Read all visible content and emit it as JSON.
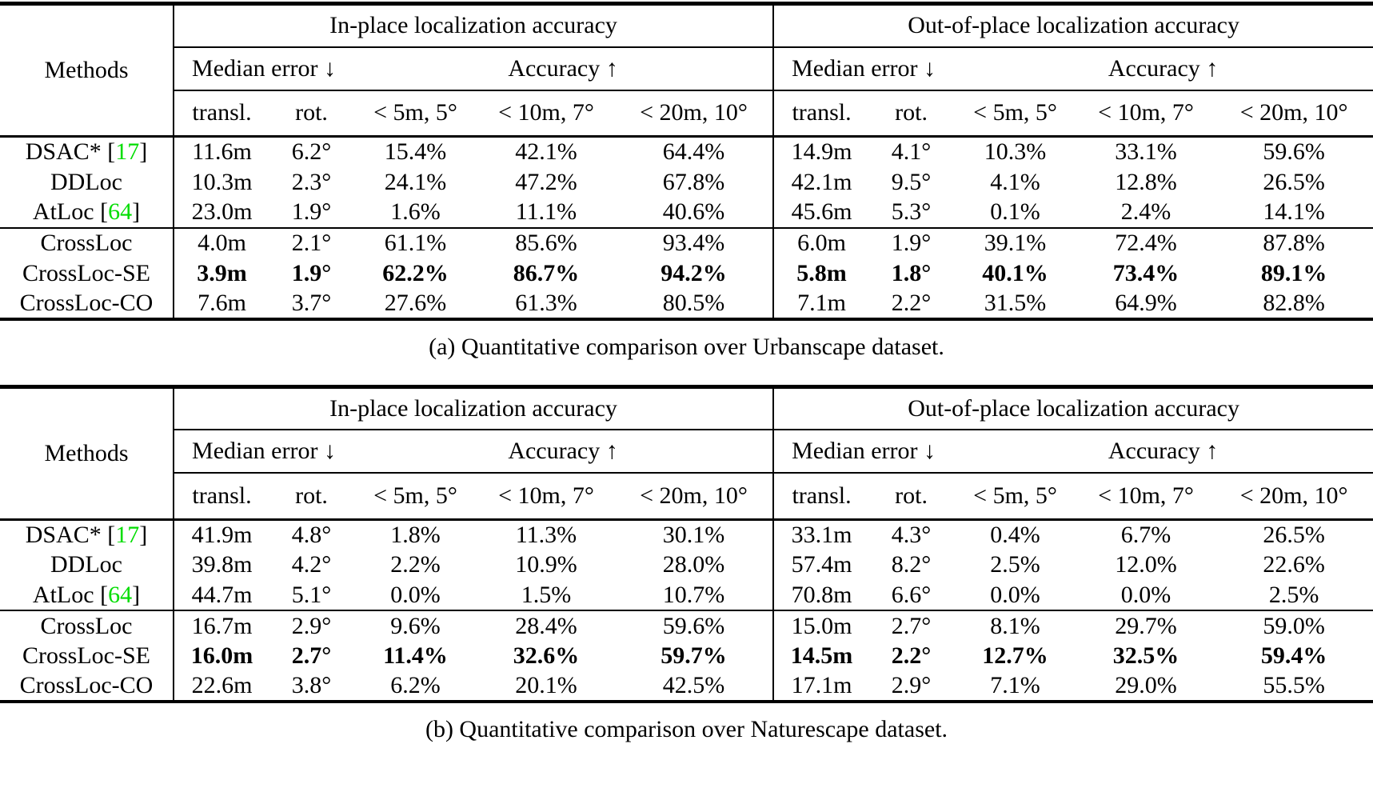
{
  "page": {
    "background": "#ffffff",
    "text_color": "#000000",
    "citation_color": "#00dd00",
    "rule_color": "#000000"
  },
  "header": {
    "methods": "Methods",
    "group_in": "In-place localization accuracy",
    "group_out": "Out-of-place localization accuracy",
    "median_error": "Median error ↓",
    "accuracy": "Accuracy ↑",
    "cols": [
      "transl.",
      "rot.",
      "< 5m, 5°",
      "< 10m, 7°",
      "< 20m, 10°"
    ]
  },
  "tables": [
    {
      "id": "urbanscape",
      "caption": "(a) Quantitative comparison over Urbanscape dataset.",
      "row_groups": [
        {
          "rows": [
            {
              "method": "DSAC*",
              "citation": "17",
              "bold": false,
              "in_place": [
                "11.6m",
                "6.2°",
                "15.4%",
                "42.1%",
                "64.4%"
              ],
              "out_of_place": [
                "14.9m",
                "4.1°",
                "10.3%",
                "33.1%",
                "59.6%"
              ]
            },
            {
              "method": "DDLoc",
              "citation": null,
              "bold": false,
              "in_place": [
                "10.3m",
                "2.3°",
                "24.1%",
                "47.2%",
                "67.8%"
              ],
              "out_of_place": [
                "42.1m",
                "9.5°",
                "4.1%",
                "12.8%",
                "26.5%"
              ]
            },
            {
              "method": "AtLoc",
              "citation": "64",
              "bold": false,
              "in_place": [
                "23.0m",
                "1.9°",
                "1.6%",
                "11.1%",
                "40.6%"
              ],
              "out_of_place": [
                "45.6m",
                "5.3°",
                "0.1%",
                "2.4%",
                "14.1%"
              ]
            }
          ]
        },
        {
          "rows": [
            {
              "method": "CrossLoc",
              "citation": null,
              "bold": false,
              "in_place": [
                "4.0m",
                "2.1°",
                "61.1%",
                "85.6%",
                "93.4%"
              ],
              "out_of_place": [
                "6.0m",
                "1.9°",
                "39.1%",
                "72.4%",
                "87.8%"
              ]
            },
            {
              "method": "CrossLoc-SE",
              "citation": null,
              "bold": true,
              "in_place": [
                "3.9m",
                "1.9°",
                "62.2%",
                "86.7%",
                "94.2%"
              ],
              "out_of_place": [
                "5.8m",
                "1.8°",
                "40.1%",
                "73.4%",
                "89.1%"
              ]
            },
            {
              "method": "CrossLoc-CO",
              "citation": null,
              "bold": false,
              "in_place": [
                "7.6m",
                "3.7°",
                "27.6%",
                "61.3%",
                "80.5%"
              ],
              "out_of_place": [
                "7.1m",
                "2.2°",
                "31.5%",
                "64.9%",
                "82.8%"
              ]
            }
          ]
        }
      ]
    },
    {
      "id": "naturescape",
      "caption": "(b) Quantitative comparison over Naturescape dataset.",
      "row_groups": [
        {
          "rows": [
            {
              "method": "DSAC*",
              "citation": "17",
              "bold": false,
              "in_place": [
                "41.9m",
                "4.8°",
                "1.8%",
                "11.3%",
                "30.1%"
              ],
              "out_of_place": [
                "33.1m",
                "4.3°",
                "0.4%",
                "6.7%",
                "26.5%"
              ]
            },
            {
              "method": "DDLoc",
              "citation": null,
              "bold": false,
              "in_place": [
                "39.8m",
                "4.2°",
                "2.2%",
                "10.9%",
                "28.0%"
              ],
              "out_of_place": [
                "57.4m",
                "8.2°",
                "2.5%",
                "12.0%",
                "22.6%"
              ]
            },
            {
              "method": "AtLoc",
              "citation": "64",
              "bold": false,
              "in_place": [
                "44.7m",
                "5.1°",
                "0.0%",
                "1.5%",
                "10.7%"
              ],
              "out_of_place": [
                "70.8m",
                "6.6°",
                "0.0%",
                "0.0%",
                "2.5%"
              ]
            }
          ]
        },
        {
          "rows": [
            {
              "method": "CrossLoc",
              "citation": null,
              "bold": false,
              "in_place": [
                "16.7m",
                "2.9°",
                "9.6%",
                "28.4%",
                "59.6%"
              ],
              "out_of_place": [
                "15.0m",
                "2.7°",
                "8.1%",
                "29.7%",
                "59.0%"
              ]
            },
            {
              "method": "CrossLoc-SE",
              "citation": null,
              "bold": true,
              "in_place": [
                "16.0m",
                "2.7°",
                "11.4%",
                "32.6%",
                "59.7%"
              ],
              "out_of_place": [
                "14.5m",
                "2.2°",
                "12.7%",
                "32.5%",
                "59.4%"
              ]
            },
            {
              "method": "CrossLoc-CO",
              "citation": null,
              "bold": false,
              "in_place": [
                "22.6m",
                "3.8°",
                "6.2%",
                "20.1%",
                "42.5%"
              ],
              "out_of_place": [
                "17.1m",
                "2.9°",
                "7.1%",
                "29.0%",
                "55.5%"
              ]
            }
          ]
        }
      ]
    }
  ]
}
